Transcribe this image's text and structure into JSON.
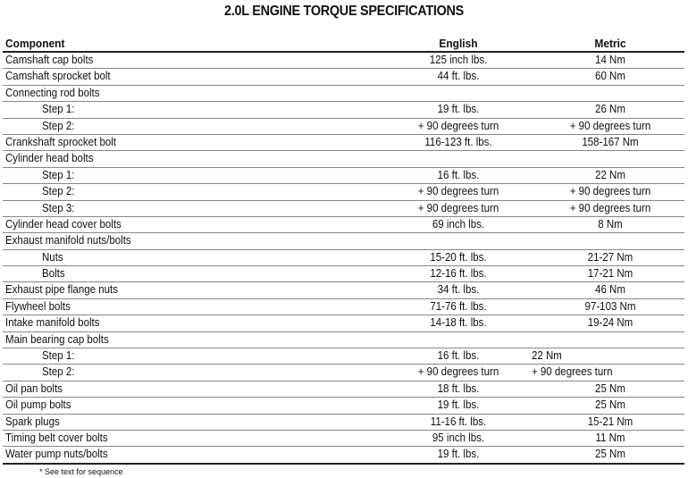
{
  "title": "2.0L ENGINE TORQUE SPECIFICATIONS",
  "headers": {
    "component": "Component",
    "english": "English",
    "metric": "Metric"
  },
  "rows": [
    {
      "component": "Camshaft cap bolts",
      "english": "125 inch lbs.",
      "metric": "14 Nm"
    },
    {
      "component": "Camshaft sprocket bolt",
      "english": "44 ft. lbs.",
      "metric": "60 Nm"
    },
    {
      "component": "Connecting rod bolts",
      "english": "",
      "metric": ""
    },
    {
      "component": "Step 1:",
      "english": "19 ft. lbs.",
      "metric": "26 Nm",
      "indent": true
    },
    {
      "component": "Step 2:",
      "english": "+ 90 degrees turn",
      "metric": "+ 90 degrees turn",
      "indent": true
    },
    {
      "component": "Crankshaft sprocket bolt",
      "english": "116-123 ft. lbs.",
      "metric": "158-167 Nm"
    },
    {
      "component": "Cylinder head bolts",
      "english": "",
      "metric": ""
    },
    {
      "component": "Step 1:",
      "english": "16 ft. lbs.",
      "metric": "22 Nm",
      "indent": true
    },
    {
      "component": "Step 2:",
      "english": "+ 90 degrees turn",
      "metric": "+ 90 degrees turn",
      "indent": true
    },
    {
      "component": "Step 3:",
      "english": "+ 90 degrees turn",
      "metric": "+ 90 degrees turn",
      "indent": true
    },
    {
      "component": "Cylinder head cover bolts",
      "english": "69 inch lbs.",
      "metric": "8 Nm"
    },
    {
      "component": "Exhaust manifold nuts/bolts",
      "english": "",
      "metric": ""
    },
    {
      "component": "Nuts",
      "english": "15-20 ft. lbs.",
      "metric": "21-27 Nm",
      "indent": true
    },
    {
      "component": "Bolts",
      "english": "12-16 ft. lbs.",
      "metric": "17-21 Nm",
      "indent": true
    },
    {
      "component": "Exhaust pipe flange nuts",
      "english": "34 ft. lbs.",
      "metric": "46 Nm"
    },
    {
      "component": "Flywheel bolts",
      "english": "71-76 ft. lbs.",
      "metric": "97-103 Nm"
    },
    {
      "component": "Intake manifold bolts",
      "english": "14-18 ft. lbs.",
      "metric": "19-24 Nm"
    },
    {
      "component": "Main bearing cap bolts",
      "english": "",
      "metric": ""
    },
    {
      "component": "Step 1:",
      "english": "16 ft. lbs.",
      "metric": "22 Nm",
      "indent": true,
      "metric_left": true
    },
    {
      "component": "Step 2:",
      "english": "+ 90 degrees turn",
      "metric": "+ 90 degrees turn",
      "indent": true,
      "metric_left": true
    },
    {
      "component": "Oil pan bolts",
      "english": "18 ft. lbs.",
      "metric": "25 Nm"
    },
    {
      "component": "Oil pump bolts",
      "english": "19 ft. lbs.",
      "metric": "25 Nm"
    },
    {
      "component": "Spark plugs",
      "english": "11-16 ft. lbs.",
      "metric": "15-21 Nm"
    },
    {
      "component": "Timing belt cover bolts",
      "english": "95 inch lbs.",
      "metric": "11 Nm"
    },
    {
      "component": "Water pump nuts/bolts",
      "english": "19 ft. lbs.",
      "metric": "25 Nm"
    }
  ],
  "footnote": "* See text for sequence"
}
